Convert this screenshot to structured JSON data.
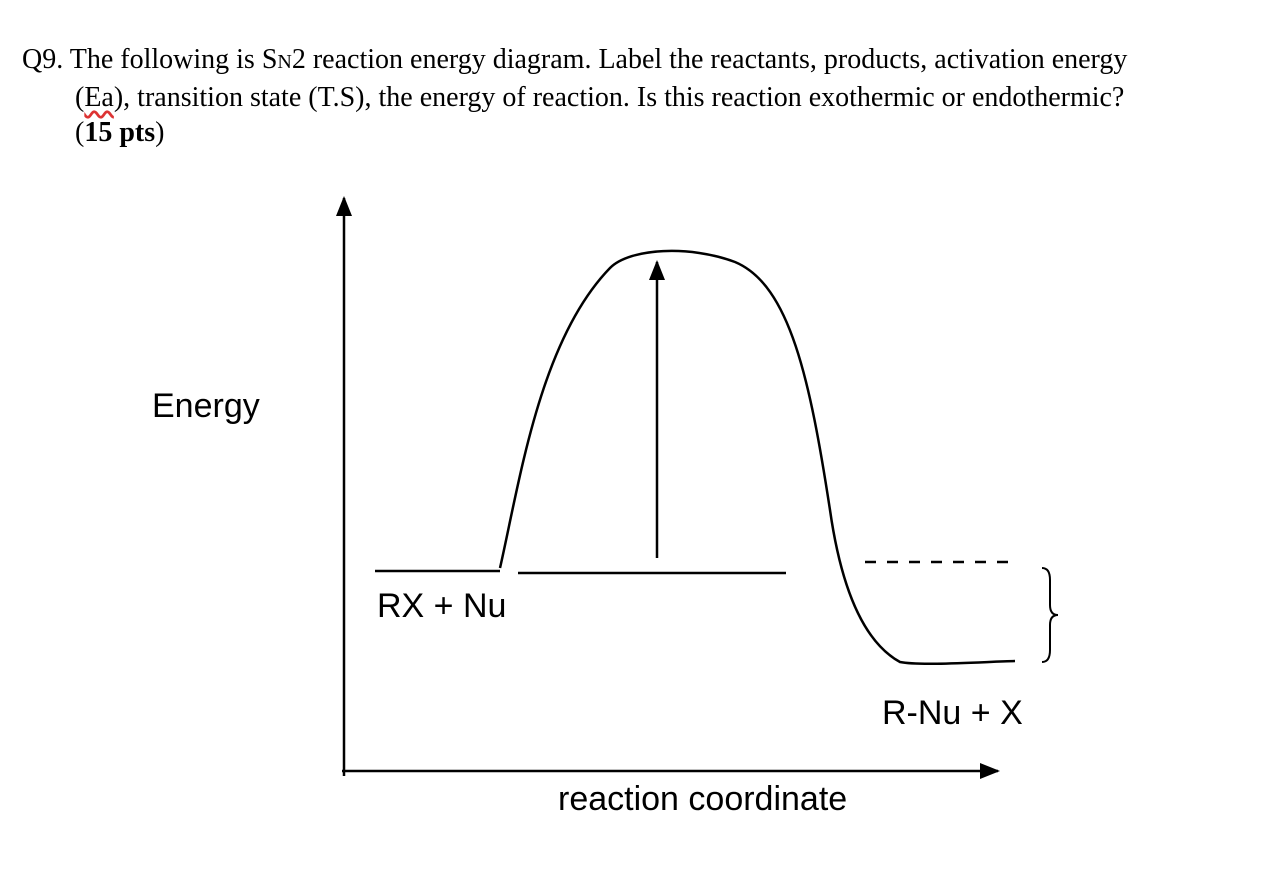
{
  "question": {
    "number": "Q9.",
    "text_1": "The following is S",
    "small": "N",
    "text_2": "2 reaction energy diagram. Label the reactants, products, activation energy (",
    "underlined": "Ea",
    "text_3": "), transition state (T.S), the energy of reaction. Is this reaction exothermic or endothermic? (",
    "bold": "15 pts",
    "text_4": ")"
  },
  "diagram": {
    "y_axis_label": "Energy",
    "x_axis_label": "reaction coordinate",
    "reactants_label": "RX + Nu",
    "products_label": "R-Nu + X"
  }
}
